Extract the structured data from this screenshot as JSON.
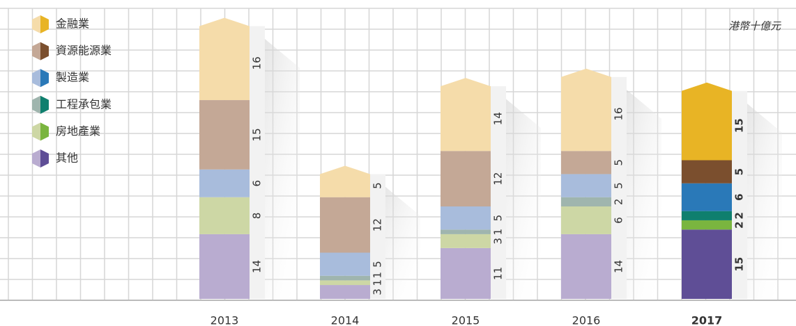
{
  "chart_data": {
    "type": "stacked_bar",
    "unit_label": "港幣十億元",
    "categories": [
      "2013",
      "2014",
      "2015",
      "2016",
      "2017"
    ],
    "highlight": [
      false,
      false,
      false,
      false,
      true
    ],
    "series": [
      {
        "name": "其他",
        "color": "#5f4e96",
        "pale_color": "#b9acd0",
        "values": [
          14,
          3,
          11,
          14,
          15
        ]
      },
      {
        "name": "房地產業",
        "color": "#7ab53f",
        "pale_color": "#cdd7a5",
        "values": [
          8,
          1,
          3,
          6,
          2
        ]
      },
      {
        "name": "工程承包業",
        "color": "#0f7f6e",
        "pale_color": "#9fb5ae",
        "values": [
          null,
          1,
          1,
          2,
          2
        ]
      },
      {
        "name": "製造業",
        "color": "#2a79b8",
        "pale_color": "#a8bcdc",
        "values": [
          6,
          5,
          5,
          5,
          6
        ]
      },
      {
        "name": "資源能源業",
        "color": "#7b4f2e",
        "pale_color": "#c4a896",
        "values": [
          15,
          12,
          12,
          5,
          5
        ]
      },
      {
        "name": "金融業",
        "color": "#e8b425",
        "pale_color": "#f5dcaa",
        "values": [
          16,
          5,
          14,
          16,
          15
        ]
      }
    ]
  }
}
